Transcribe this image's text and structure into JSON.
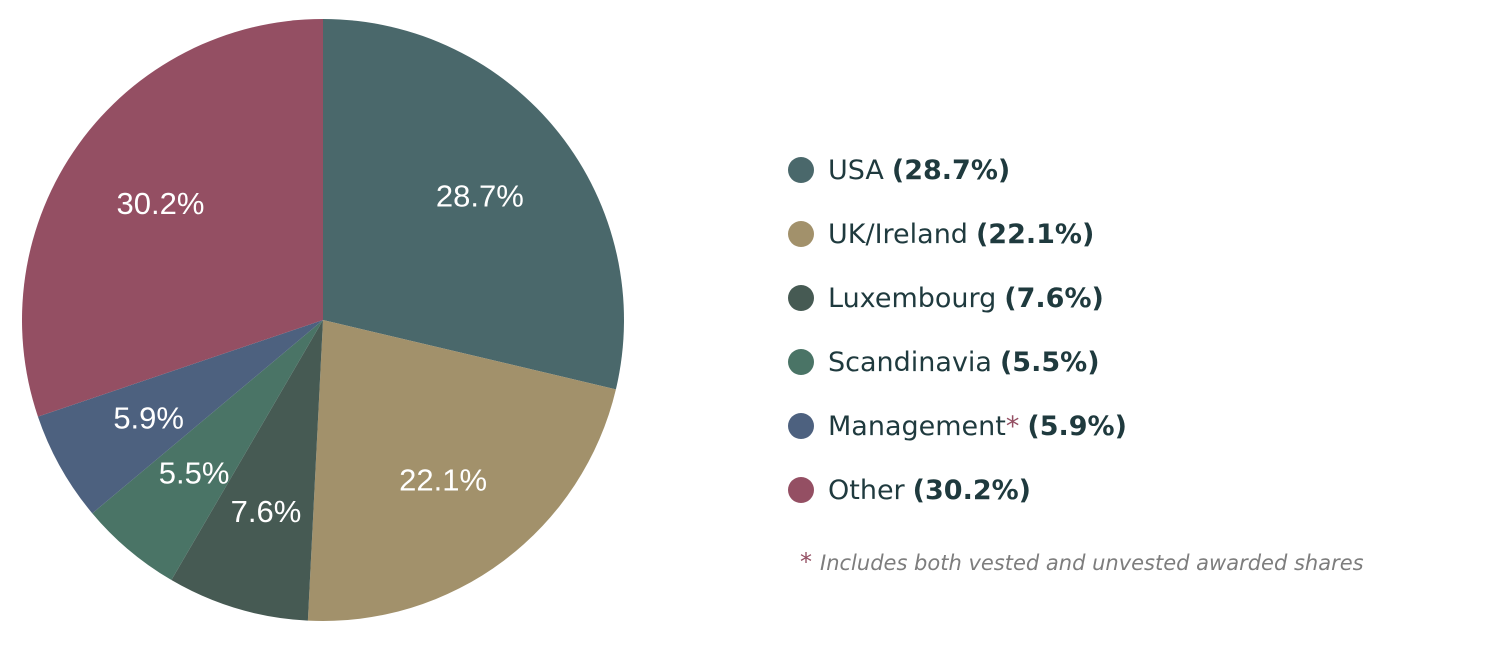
{
  "chart_data": {
    "type": "pie",
    "start_angle_deg": 0,
    "direction": "clockwise",
    "slices": [
      {
        "name": "USA",
        "value": 28.7,
        "label": "28.7%",
        "color": "#4a686b"
      },
      {
        "name": "UK/Ireland",
        "value": 22.1,
        "label": "22.1%",
        "color": "#a2916b"
      },
      {
        "name": "Luxembourg",
        "value": 7.6,
        "label": "7.6%",
        "color": "#465a53"
      },
      {
        "name": "Scandinavia",
        "value": 5.5,
        "label": "5.5%",
        "color": "#4a7466"
      },
      {
        "name": "Management",
        "value": 5.9,
        "label": "5.9%",
        "color": "#4d617f"
      },
      {
        "name": "Other",
        "value": 30.2,
        "label": "30.2%",
        "color": "#944f63"
      }
    ]
  },
  "legend": {
    "items": [
      {
        "name": "USA",
        "pct": "(28.7%)",
        "asterisk": ""
      },
      {
        "name": "UK/Ireland",
        "pct": "(22.1%)",
        "asterisk": ""
      },
      {
        "name": "Luxembourg",
        "pct": "(7.6%)",
        "asterisk": ""
      },
      {
        "name": "Scandinavia",
        "pct": "(5.5%)",
        "asterisk": ""
      },
      {
        "name": "Management",
        "pct": "(5.9%)",
        "asterisk": "*"
      },
      {
        "name": "Other",
        "pct": "(30.2%)",
        "asterisk": ""
      }
    ]
  },
  "footnote": {
    "marker": "*",
    "text": "Includes both vested and unvested awarded shares"
  }
}
